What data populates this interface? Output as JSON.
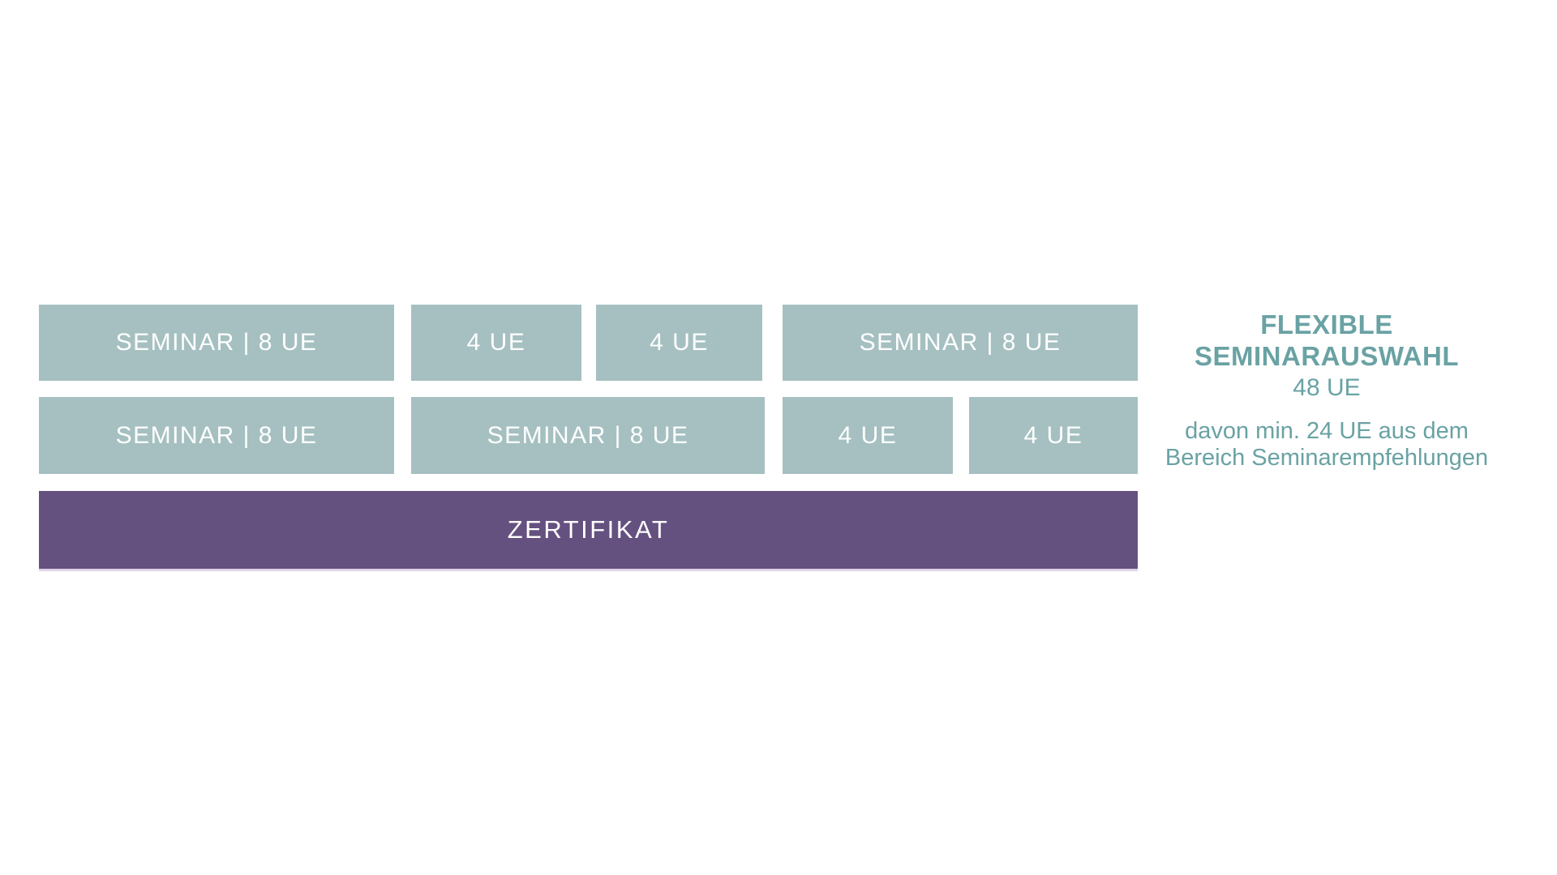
{
  "colors": {
    "block_teal": "#a6c0c1",
    "bar_purple": "#655180",
    "accent_teal": "#6aa2a4",
    "text_white": "#ffffff",
    "background": "#ffffff"
  },
  "diagram": {
    "rows": [
      {
        "blocks": [
          {
            "label": "SEMINAR | 8 UE"
          },
          {
            "label": "4 UE"
          },
          {
            "label": "4 UE"
          },
          {
            "label": "SEMINAR | 8 UE"
          }
        ]
      },
      {
        "blocks": [
          {
            "label": "SEMINAR | 8 UE"
          },
          {
            "label": "SEMINAR | 8 UE"
          },
          {
            "label": "4 UE"
          },
          {
            "label": "4 UE"
          }
        ]
      }
    ],
    "certificate": {
      "label": "ZERTIFIKAT"
    }
  },
  "note": {
    "title_line1": "FLEXIBLE",
    "title_line2": "SEMINARAUSWAHL",
    "total": "48 UE",
    "detail_line1": "davon min. 24 UE aus dem",
    "detail_line2": "Bereich Seminarempfehlungen"
  }
}
